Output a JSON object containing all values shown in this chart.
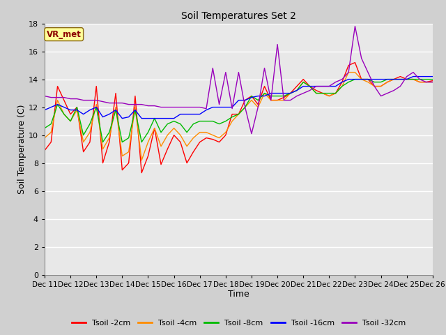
{
  "title": "Soil Temperatures Set 2",
  "xlabel": "Time",
  "ylabel": "Soil Temperature (C)",
  "ylim": [
    0,
    18
  ],
  "yticks": [
    0,
    2,
    4,
    6,
    8,
    10,
    12,
    14,
    16,
    18
  ],
  "fig_bg_color": "#d0d0d0",
  "plot_bg_color": "#e8e8e8",
  "annotation_text": "VR_met",
  "annotation_color": "#8B0000",
  "annotation_bg": "#ffff99",
  "annotation_edge": "#8B6914",
  "series_colors": {
    "Tsoil -2cm": "#ff0000",
    "Tsoil -4cm": "#ff8c00",
    "Tsoil -8cm": "#00bb00",
    "Tsoil -16cm": "#0000ff",
    "Tsoil -32cm": "#9900bb"
  },
  "x_tick_labels": [
    "Dec 11",
    "Dec 12",
    "Dec 13",
    "Dec 14",
    "Dec 15",
    "Dec 16",
    "Dec 17",
    "Dec 18",
    "Dec 19",
    "Dec 20",
    "Dec 21",
    "Dec 22",
    "Dec 23",
    "Dec 24",
    "Dec 25",
    "Dec 26"
  ],
  "tsoil_2cm": [
    8.9,
    9.5,
    13.5,
    12.5,
    11.5,
    12.0,
    8.8,
    9.5,
    13.5,
    8.0,
    9.5,
    13.0,
    7.5,
    8.0,
    12.8,
    7.3,
    8.5,
    10.5,
    7.9,
    9.0,
    10.0,
    9.5,
    8.0,
    8.8,
    9.5,
    9.8,
    9.7,
    9.5,
    10.0,
    11.5,
    11.5,
    12.5,
    12.8,
    12.2,
    13.5,
    12.5,
    12.5,
    12.7,
    13.0,
    13.5,
    14.0,
    13.5,
    13.2,
    13.0,
    12.8,
    13.0,
    13.8,
    15.0,
    15.2,
    14.0,
    14.0,
    13.5,
    13.5,
    13.8,
    14.0,
    14.2,
    14.0,
    14.0,
    13.8,
    13.8,
    13.9
  ],
  "tsoil_4cm": [
    9.8,
    10.2,
    12.5,
    11.5,
    11.0,
    11.8,
    9.5,
    10.2,
    12.2,
    9.0,
    9.8,
    12.0,
    8.5,
    8.8,
    12.0,
    8.2,
    9.5,
    10.5,
    9.2,
    10.0,
    10.5,
    10.0,
    9.2,
    9.8,
    10.2,
    10.2,
    10.0,
    9.8,
    10.2,
    11.0,
    11.5,
    12.0,
    12.5,
    12.0,
    13.0,
    12.5,
    12.5,
    12.5,
    13.0,
    13.2,
    13.8,
    13.5,
    13.0,
    13.0,
    12.8,
    13.0,
    13.5,
    14.5,
    14.5,
    14.0,
    13.8,
    13.5,
    13.5,
    13.8,
    14.0,
    14.0,
    14.0,
    14.0,
    13.8,
    13.8,
    13.8
  ],
  "tsoil_8cm": [
    10.5,
    10.8,
    12.2,
    11.5,
    11.0,
    12.0,
    10.0,
    10.8,
    12.0,
    9.5,
    10.2,
    11.8,
    9.5,
    9.8,
    11.8,
    9.5,
    10.2,
    11.2,
    10.2,
    10.8,
    11.0,
    10.8,
    10.2,
    10.8,
    11.0,
    11.0,
    11.0,
    10.8,
    11.0,
    11.3,
    11.5,
    12.0,
    12.8,
    12.5,
    13.0,
    12.8,
    12.8,
    12.8,
    13.0,
    13.2,
    13.8,
    13.5,
    13.0,
    13.0,
    13.0,
    13.0,
    13.5,
    13.8,
    14.0,
    14.0,
    14.0,
    13.8,
    13.8,
    14.0,
    14.0,
    14.0,
    14.0,
    14.0,
    14.0,
    14.0,
    14.0
  ],
  "tsoil_16cm": [
    11.8,
    12.0,
    12.2,
    12.0,
    11.8,
    11.8,
    11.5,
    11.8,
    12.0,
    11.3,
    11.5,
    11.8,
    11.2,
    11.3,
    11.8,
    11.2,
    11.2,
    11.2,
    11.2,
    11.2,
    11.2,
    11.5,
    11.5,
    11.5,
    11.5,
    11.8,
    12.0,
    12.0,
    12.0,
    12.0,
    12.5,
    12.5,
    12.7,
    12.8,
    12.8,
    13.0,
    13.0,
    13.0,
    13.0,
    13.2,
    13.5,
    13.5,
    13.5,
    13.5,
    13.5,
    13.5,
    13.8,
    14.0,
    14.0,
    14.0,
    14.0,
    14.0,
    14.0,
    14.0,
    14.0,
    14.0,
    14.0,
    14.2,
    14.2,
    14.2,
    14.2
  ],
  "tsoil_32cm": [
    12.8,
    12.7,
    12.7,
    12.7,
    12.6,
    12.6,
    12.5,
    12.5,
    12.5,
    12.4,
    12.3,
    12.3,
    12.3,
    12.2,
    12.2,
    12.2,
    12.1,
    12.1,
    12.0,
    12.0,
    12.0,
    12.0,
    12.0,
    12.0,
    12.0,
    11.9,
    14.8,
    12.2,
    14.5,
    11.9,
    14.5,
    12.0,
    10.1,
    12.0,
    14.8,
    12.5,
    16.5,
    12.5,
    12.5,
    12.8,
    13.0,
    13.2,
    13.5,
    13.5,
    13.5,
    13.8,
    14.0,
    14.5,
    17.8,
    15.5,
    14.5,
    13.5,
    12.8,
    13.0,
    13.2,
    13.5,
    14.2,
    14.5,
    14.0,
    13.8,
    13.8
  ]
}
